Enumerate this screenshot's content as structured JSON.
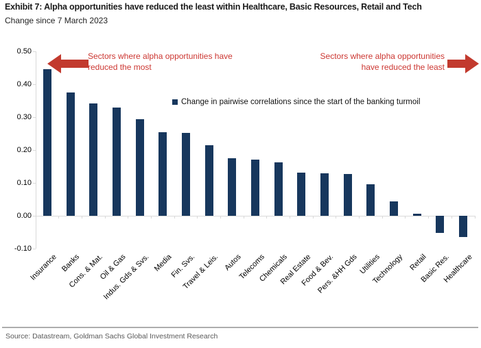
{
  "header": {
    "title": "Exhibit 7: Alpha opportunities have reduced the least within Healthcare, Basic Resources, Retail and Tech",
    "subtitle": "Change since 7 March 2023"
  },
  "annotations": {
    "left": {
      "line1": "Sectors where alpha opportunities have",
      "line2": "reduced the most"
    },
    "right": {
      "line1": "Sectors where alpha opportunities",
      "line2": "have reduced the least"
    }
  },
  "legend": {
    "label": "Change in pairwise correlations since the start of the banking turmoil"
  },
  "chart_data": {
    "type": "bar",
    "title": "Change since 7 March 2023",
    "categories": [
      "Insurance",
      "Banks",
      "Cons. & Mat.",
      "Oil & Gas",
      "Indus. Gds & Svs.",
      "Media",
      "Fin. Svs.",
      "Travel & Leis.",
      "Autos",
      "Telecoms",
      "Chemicals",
      "Real Estate",
      "Food & Bev.",
      "Pers. &HH Gds",
      "Utilities",
      "Technology",
      "Retail",
      "Basic Res.",
      "Healthcare"
    ],
    "values": [
      0.445,
      0.375,
      0.342,
      0.33,
      0.293,
      0.255,
      0.252,
      0.214,
      0.175,
      0.171,
      0.162,
      0.131,
      0.13,
      0.128,
      0.096,
      0.043,
      0.007,
      -0.053,
      -0.065
    ],
    "series_label": "Change in pairwise correlations since the start of the banking turmoil",
    "xlabel": "",
    "ylabel": "",
    "ylim": [
      -0.1,
      0.5
    ],
    "yticks": [
      0.5,
      0.4,
      0.3,
      0.2,
      0.1,
      0.0,
      -0.1
    ],
    "grid": false,
    "legend_position": "upper center"
  },
  "colors": {
    "bar": "#17375D",
    "red_arrow": "#C23A2E",
    "red_text": "#CC3732",
    "axis_line": "#D9D9D9",
    "title_text": "#1A1A1A",
    "divider": "#ADADAD",
    "source_text": "#595959"
  },
  "footer": {
    "source": "Source: Datastream, Goldman Sachs Global Investment Research"
  }
}
